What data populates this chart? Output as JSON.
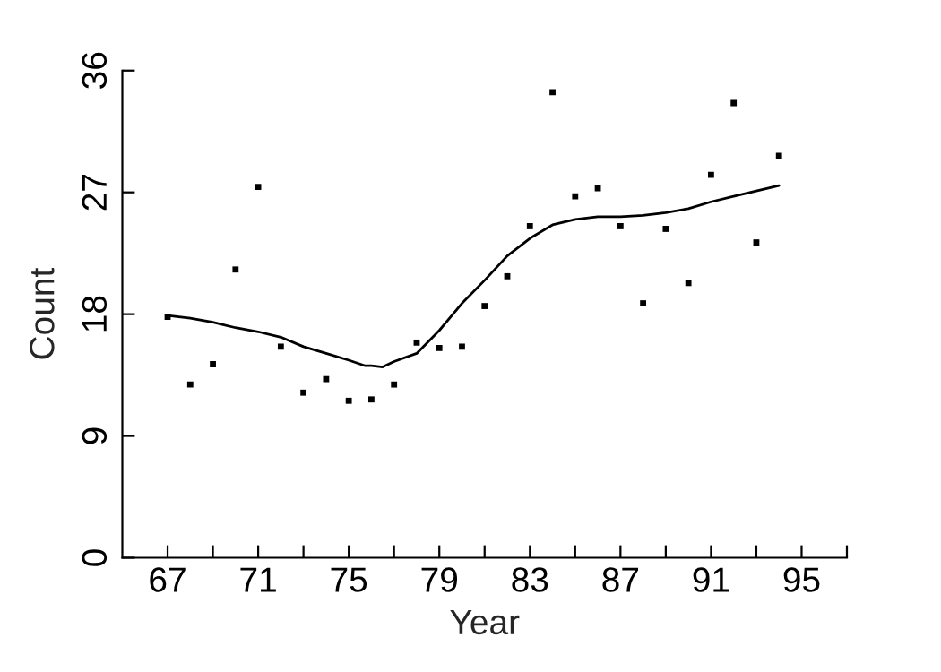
{
  "chart_data": {
    "type": "scatter",
    "xlabel": "Year",
    "ylabel": "Count",
    "xlim": [
      65,
      97
    ],
    "ylim": [
      0,
      36
    ],
    "xticks": [
      {
        "value": 67,
        "label": "67"
      },
      {
        "value": 69,
        "label": null
      },
      {
        "value": 71,
        "label": "71"
      },
      {
        "value": 73,
        "label": null
      },
      {
        "value": 75,
        "label": "75"
      },
      {
        "value": 77,
        "label": null
      },
      {
        "value": 79,
        "label": "79"
      },
      {
        "value": 81,
        "label": null
      },
      {
        "value": 83,
        "label": "83"
      },
      {
        "value": 85,
        "label": null
      },
      {
        "value": 87,
        "label": "87"
      },
      {
        "value": 89,
        "label": null
      },
      {
        "value": 91,
        "label": "91"
      },
      {
        "value": 93,
        "label": null
      },
      {
        "value": 95,
        "label": "95"
      },
      {
        "value": 97,
        "label": null
      }
    ],
    "yticks": [
      0,
      9,
      18,
      27,
      36
    ],
    "grid": false,
    "legend": false,
    "marker": "square",
    "series": [
      {
        "color": "#000000",
        "x": [
          67,
          68,
          69,
          70,
          71,
          72,
          73,
          74,
          75,
          76,
          77,
          78,
          79,
          80,
          81,
          82,
          83,
          84,
          85,
          86,
          87,
          88,
          89,
          90,
          91,
          92,
          93,
          94
        ],
        "values": [
          17.8,
          12.8,
          14.3,
          21.3,
          27.4,
          15.6,
          12.2,
          13.2,
          11.6,
          11.7,
          12.8,
          15.9,
          15.5,
          15.6,
          18.6,
          20.8,
          24.5,
          34.4,
          26.7,
          27.3,
          24.5,
          18.8,
          24.3,
          20.3,
          28.3,
          33.6,
          23.3,
          29.7
        ]
      },
      {
        "type": "line",
        "color": "#000000",
        "marker": "none",
        "line_style": "solid",
        "x": [
          67,
          68,
          69,
          70,
          71,
          72,
          73,
          74,
          75,
          75.7,
          76,
          76.5,
          77,
          78,
          79,
          80,
          81,
          82,
          83,
          84,
          85,
          86,
          87,
          88,
          89,
          90,
          91,
          92,
          93,
          94
        ],
        "values": [
          17.9,
          17.7,
          17.4,
          17.0,
          16.7,
          16.3,
          15.6,
          15.1,
          14.6,
          14.2,
          14.2,
          14.1,
          14.5,
          15.1,
          16.8,
          18.8,
          20.5,
          22.3,
          23.6,
          24.6,
          25.0,
          25.2,
          25.2,
          25.3,
          25.5,
          25.8,
          26.3,
          26.7,
          27.1,
          27.5
        ]
      }
    ]
  }
}
